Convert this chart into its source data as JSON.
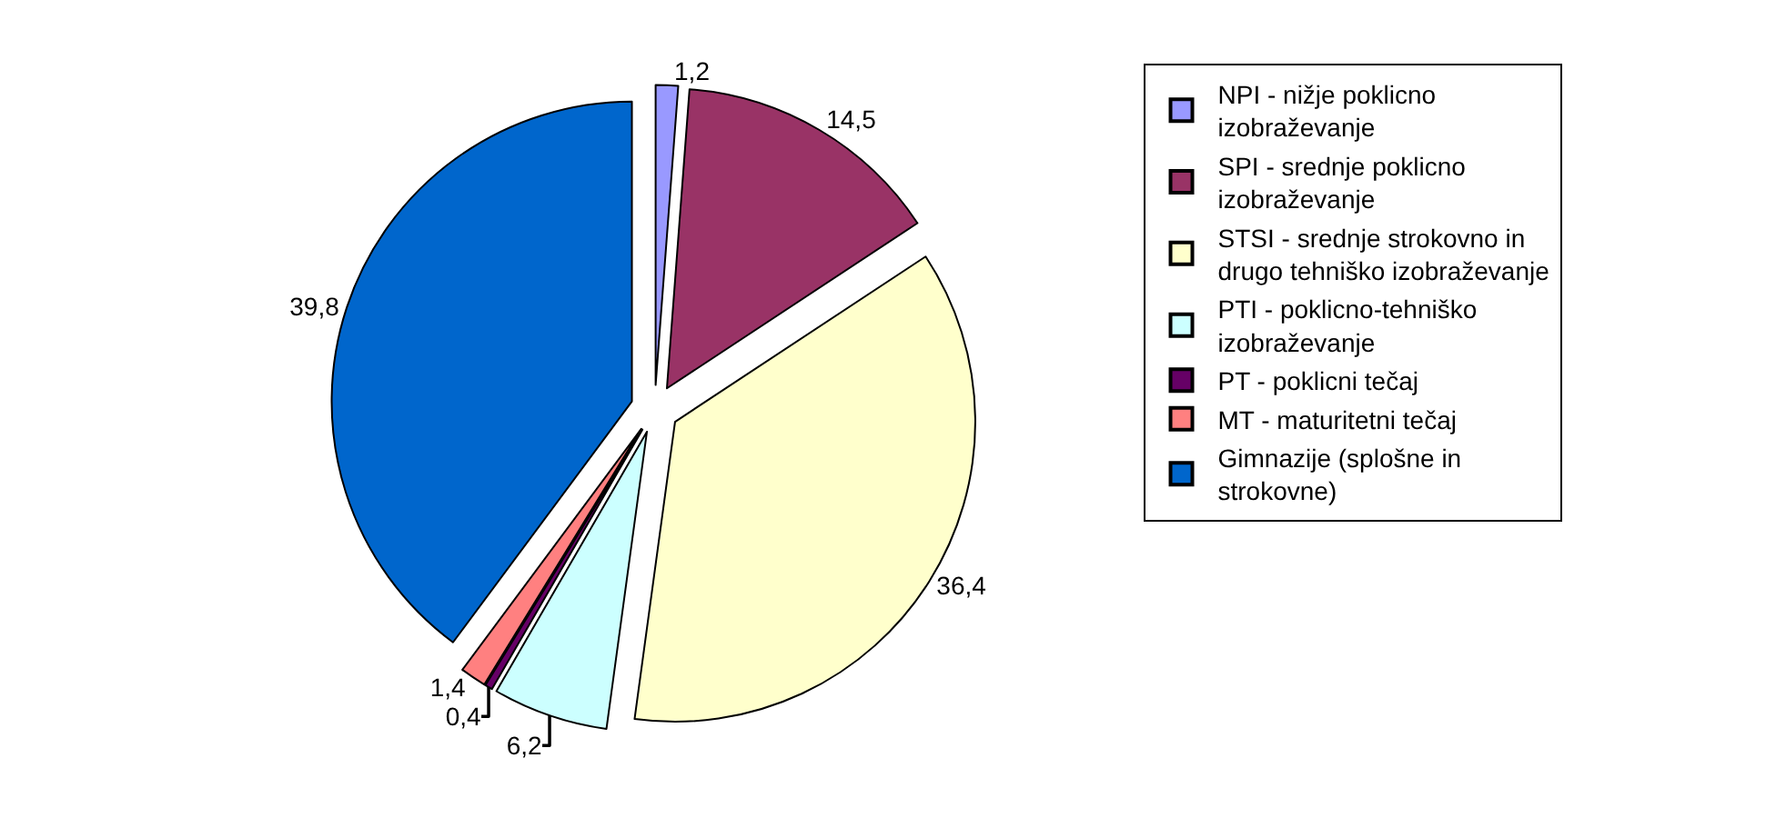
{
  "chart_data": {
    "type": "pie",
    "categories": [
      "NPI - nižje poklicno izobraževanje",
      "SPI - srednje poklicno izobraževanje",
      "STSI - srednje strokovno in drugo tehniško izobraževanje",
      "PTI - poklicno-tehniško izobraževanje",
      "PT - poklicni tečaj",
      "MT - maturitetni tečaj",
      "Gimnazije (splošne in strokovne)"
    ],
    "values": [
      1.2,
      14.5,
      36.4,
      6.2,
      0.4,
      1.4,
      39.8
    ],
    "value_labels": [
      "1,2",
      "14,5",
      "36,4",
      "6,2",
      "0,4",
      "1,4",
      "39,8"
    ],
    "colors": [
      "#9999ff",
      "#993366",
      "#ffffcc",
      "#ccffff",
      "#660066",
      "#ff8080",
      "#0066cc"
    ],
    "legend": "right"
  }
}
